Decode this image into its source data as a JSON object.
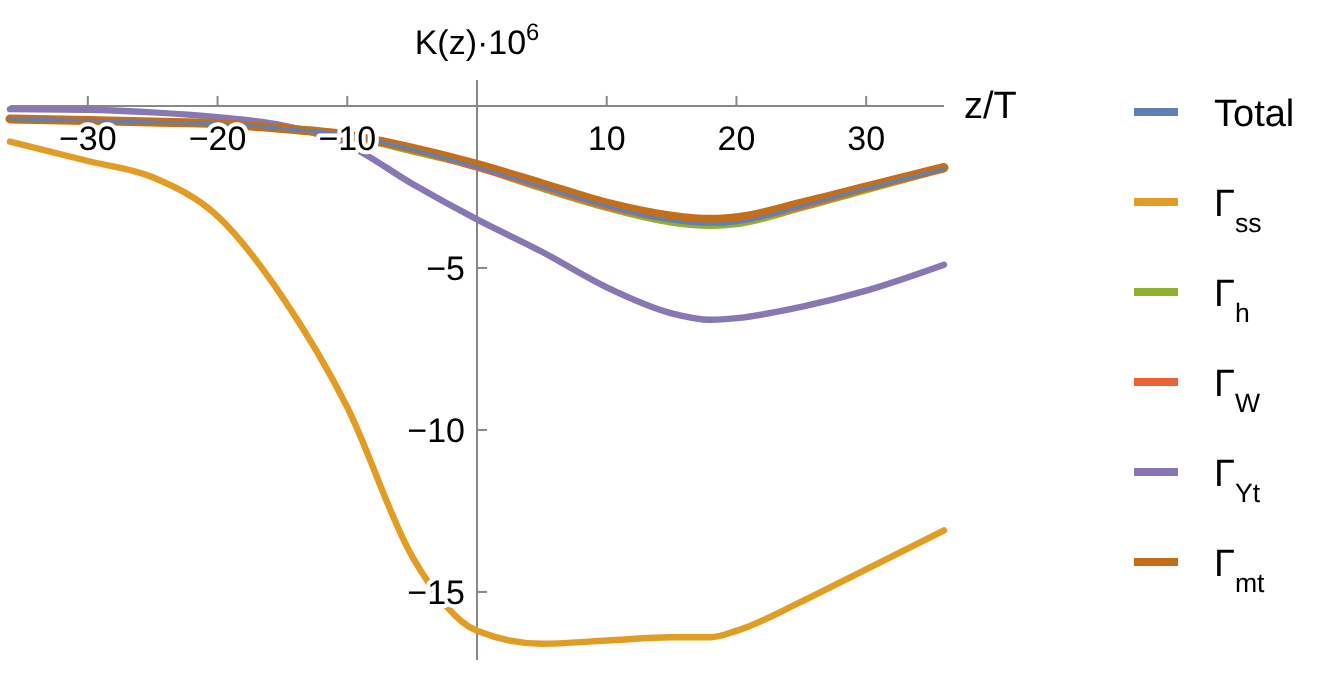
{
  "chart_data": {
    "type": "line",
    "xlabel": "z/T",
    "ylabel": "K(z)·10$^{6}$",
    "xlim": [
      -36,
      36
    ],
    "ylim": [
      -17.1,
      0.8
    ],
    "xticks": [
      -30,
      -20,
      -10,
      10,
      20,
      30
    ],
    "yticks": [
      -15,
      -10,
      -5
    ],
    "grid": false,
    "legend": "right",
    "line_style": "solid",
    "marker": "none",
    "x": [
      -36,
      -30,
      -25,
      -20,
      -15,
      -10,
      -5,
      0,
      5,
      10,
      15,
      18,
      20,
      25,
      30,
      36
    ],
    "series": [
      {
        "name": "Total",
        "color": "#5e81b5",
        "values": [
          -0.4,
          -0.45,
          -0.5,
          -0.55,
          -0.7,
          -0.9,
          -1.35,
          -1.9,
          -2.5,
          -3.1,
          -3.55,
          -3.65,
          -3.6,
          -3.1,
          -2.55,
          -1.95
        ]
      },
      {
        "name": "Γ$_{ss}$",
        "color": "#e19c24",
        "values": [
          -1.1,
          -1.7,
          -2.2,
          -3.4,
          -5.9,
          -9.3,
          -13.9,
          -16.2,
          -16.6,
          -16.5,
          -16.4,
          -16.4,
          -16.2,
          -15.3,
          -14.3,
          -13.1
        ]
      },
      {
        "name": "Γ$_{h}$",
        "color": "#8fb032",
        "values": [
          -0.4,
          -0.45,
          -0.5,
          -0.55,
          -0.7,
          -0.95,
          -1.4,
          -1.9,
          -2.55,
          -3.15,
          -3.6,
          -3.7,
          -3.65,
          -3.15,
          -2.6,
          -1.95
        ]
      },
      {
        "name": "Γ$_{W}$",
        "color": "#eb6235",
        "values": [
          -0.4,
          -0.45,
          -0.5,
          -0.55,
          -0.7,
          -0.95,
          -1.35,
          -1.9,
          -2.5,
          -3.1,
          -3.5,
          -3.6,
          -3.55,
          -3.1,
          -2.55,
          -1.95
        ]
      },
      {
        "name": "Γ$_{Yt}$",
        "color": "#8778b3",
        "values": [
          -0.1,
          -0.12,
          -0.2,
          -0.35,
          -0.6,
          -1.2,
          -2.4,
          -3.5,
          -4.5,
          -5.6,
          -6.4,
          -6.6,
          -6.55,
          -6.2,
          -5.7,
          -4.9
        ]
      },
      {
        "name": "Γ$_{mt}$",
        "color": "#c56e1a",
        "values": [
          -0.4,
          -0.45,
          -0.5,
          -0.55,
          -0.7,
          -0.9,
          -1.3,
          -1.8,
          -2.4,
          -3.0,
          -3.4,
          -3.5,
          -3.45,
          -3.0,
          -2.5,
          -1.9
        ]
      }
    ]
  }
}
